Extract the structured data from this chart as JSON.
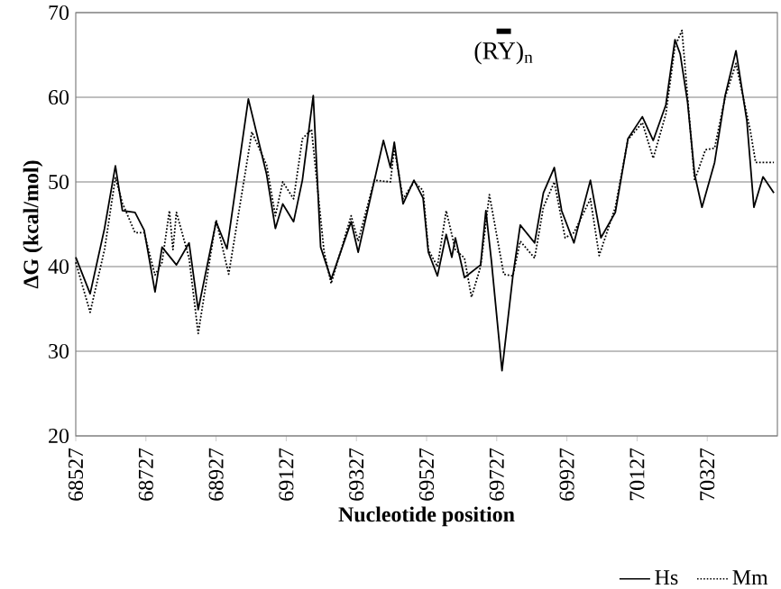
{
  "chart_data": {
    "type": "line",
    "xlabel": "Nucleotide position",
    "ylabel": "ΔG (kcal/mol)",
    "xlim": [
      68527,
      70527
    ],
    "ylim": [
      20,
      70
    ],
    "xticks": [
      68527,
      68727,
      68927,
      69127,
      69327,
      69527,
      69727,
      69927,
      70127,
      70327
    ],
    "yticks": [
      20,
      30,
      40,
      50,
      60,
      70
    ],
    "grid": "y",
    "legend": "bottom right",
    "marker": "none",
    "annotations": [
      "(RY)$_{n}$"
    ],
    "series": [
      {
        "name": "Hs",
        "color": "#000000",
        "line_style": "solid",
        "x": [
          68527,
          68568,
          68609,
          68640,
          68660,
          68696,
          68722,
          68753,
          68773,
          68814,
          68850,
          68876,
          68927,
          68958,
          69019,
          69071,
          69096,
          69117,
          69148,
          69173,
          69204,
          69225,
          69255,
          69312,
          69332,
          69404,
          69424,
          69435,
          69460,
          69491,
          69517,
          69532,
          69558,
          69583,
          69599,
          69609,
          69635,
          69681,
          69696,
          69712,
          69742,
          69773,
          69794,
          69835,
          69860,
          69891,
          69912,
          69947,
          69994,
          70024,
          70065,
          70101,
          70142,
          70173,
          70209,
          70235,
          70250,
          70271,
          70291,
          70312,
          70348,
          70378,
          70409,
          70440,
          70460,
          70486,
          70517
        ],
        "values": [
          41.1,
          36.8,
          44.5,
          51.9,
          46.6,
          46.4,
          44.3,
          37.0,
          42.3,
          40.2,
          42.8,
          34.9,
          45.3,
          42.1,
          59.8,
          50.9,
          44.5,
          47.4,
          45.3,
          50.2,
          60.2,
          42.3,
          38.5,
          45.3,
          41.7,
          54.9,
          51.7,
          54.7,
          47.4,
          50.2,
          48.1,
          41.7,
          38.9,
          43.8,
          41.1,
          43.4,
          38.7,
          40.2,
          46.6,
          40.6,
          27.7,
          38.9,
          44.9,
          42.8,
          48.7,
          51.7,
          46.6,
          42.8,
          50.2,
          43.4,
          46.4,
          55.1,
          57.7,
          54.9,
          59.1,
          66.8,
          65.1,
          59.4,
          50.9,
          47.0,
          52.3,
          60.2,
          65.5,
          57.2,
          47.0,
          50.6,
          48.7
        ]
      },
      {
        "name": "Mm",
        "color": "#000000",
        "line_style": "dotted",
        "x": [
          68527,
          68568,
          68609,
          68640,
          68660,
          68696,
          68722,
          68753,
          68773,
          68794,
          68804,
          68814,
          68850,
          68876,
          68927,
          68963,
          69029,
          69071,
          69096,
          69117,
          69148,
          69173,
          69199,
          69235,
          69255,
          69312,
          69332,
          69378,
          69424,
          69435,
          69460,
          69491,
          69517,
          69532,
          69558,
          69583,
          69609,
          69635,
          69655,
          69681,
          69706,
          69747,
          69773,
          69794,
          69835,
          69860,
          69891,
          69922,
          69947,
          69994,
          70019,
          70065,
          70101,
          70142,
          70173,
          70209,
          70235,
          70255,
          70291,
          70322,
          70348,
          70378,
          70409,
          70450,
          70465,
          70517
        ],
        "values": [
          40.5,
          34.6,
          42,
          50.5,
          47.5,
          44,
          44,
          39,
          40.5,
          46.6,
          42,
          46.4,
          41,
          32.1,
          45.5,
          39.1,
          55.9,
          52,
          46,
          50,
          48,
          55.1,
          56.2,
          41.7,
          38,
          46,
          43,
          50.2,
          50,
          54,
          48,
          50,
          49,
          42,
          40,
          46.6,
          42,
          41,
          36.4,
          40,
          48.5,
          39.1,
          38.9,
          43,
          41,
          47,
          50,
          43.4,
          44,
          48,
          41.3,
          47,
          55,
          57,
          52.8,
          58,
          66,
          67.9,
          50.2,
          53.8,
          54,
          60,
          64,
          56,
          52.3,
          52.3
        ]
      }
    ]
  }
}
